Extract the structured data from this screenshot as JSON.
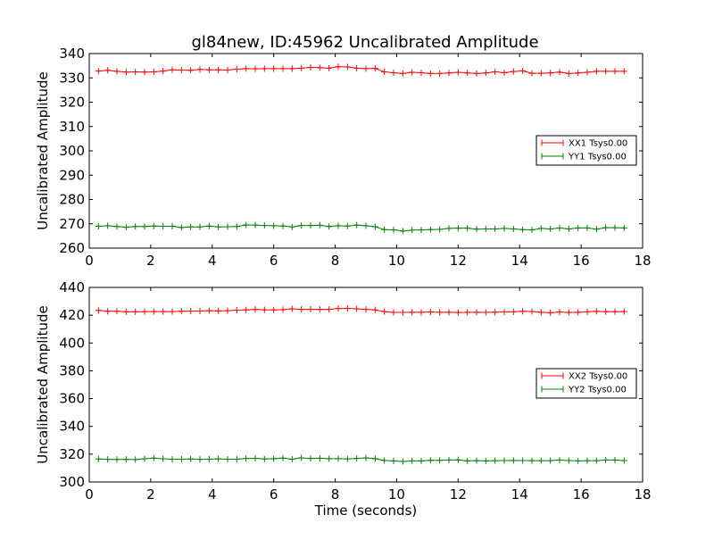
{
  "title": "gl84new, ID:45962 Uncalibrated Amplitude",
  "chart_data": [
    {
      "type": "line",
      "title": "gl84new, ID:45962 Uncalibrated Amplitude",
      "xlabel": "",
      "ylabel": "Uncalibrated Amplitude",
      "xlim": [
        0,
        18
      ],
      "ylim": [
        260,
        340
      ],
      "xticks": [
        "0",
        "2",
        "4",
        "6",
        "8",
        "10",
        "12",
        "14",
        "16",
        "18"
      ],
      "yticks": [
        "260",
        "270",
        "280",
        "290",
        "300",
        "310",
        "320",
        "330",
        "340"
      ],
      "grid": false,
      "legend_position": "right",
      "marker": "+",
      "x": [
        0.3,
        0.6,
        0.9,
        1.2,
        1.5,
        1.8,
        2.1,
        2.4,
        2.7,
        3.0,
        3.3,
        3.6,
        3.9,
        4.2,
        4.5,
        4.8,
        5.1,
        5.4,
        5.7,
        6.0,
        6.3,
        6.6,
        6.9,
        7.2,
        7.5,
        7.8,
        8.1,
        8.4,
        8.7,
        9.0,
        9.3,
        9.6,
        9.9,
        10.2,
        10.5,
        10.8,
        11.1,
        11.4,
        11.7,
        12.0,
        12.3,
        12.6,
        12.9,
        13.2,
        13.5,
        13.8,
        14.1,
        14.4,
        14.7,
        15.0,
        15.3,
        15.6,
        15.9,
        16.2,
        16.5,
        16.8,
        17.1,
        17.4
      ],
      "series": [
        {
          "name": "XX1 Tsys0.00",
          "color": "#ff0000",
          "values": [
            332.8,
            333.1,
            332.7,
            332.4,
            332.5,
            332.4,
            332.5,
            332.8,
            333.3,
            333.2,
            333.1,
            333.5,
            333.3,
            333.3,
            333.2,
            333.6,
            333.8,
            333.7,
            333.8,
            333.8,
            333.8,
            333.8,
            334.0,
            334.3,
            334.2,
            334.0,
            334.6,
            334.5,
            334.0,
            333.8,
            333.9,
            332.5,
            332.1,
            331.8,
            332.3,
            332.1,
            331.8,
            331.8,
            332.0,
            332.3,
            332.0,
            331.8,
            332.0,
            332.5,
            332.1,
            332.6,
            332.9,
            331.9,
            331.9,
            332.0,
            332.4,
            331.8,
            332.0,
            332.3,
            332.7,
            332.7,
            332.7,
            332.7
          ]
        },
        {
          "name": "YY1 Tsys0.00",
          "color": "#008000",
          "values": [
            269.0,
            269.2,
            268.9,
            268.6,
            268.9,
            268.9,
            269.1,
            269.0,
            269.0,
            268.5,
            268.7,
            268.7,
            269.1,
            268.7,
            268.8,
            268.9,
            269.5,
            269.5,
            269.3,
            269.2,
            269.1,
            268.7,
            269.3,
            269.3,
            269.4,
            268.9,
            269.2,
            269.1,
            269.5,
            269.2,
            268.8,
            267.6,
            267.5,
            267.0,
            267.4,
            267.5,
            267.6,
            267.7,
            268.1,
            268.2,
            268.2,
            267.8,
            267.9,
            267.9,
            268.1,
            267.9,
            267.6,
            267.5,
            268.1,
            267.9,
            268.3,
            267.9,
            268.3,
            268.3,
            267.8,
            268.4,
            268.4,
            268.3
          ]
        }
      ]
    },
    {
      "type": "line",
      "title": "",
      "xlabel": "Time (seconds)",
      "ylabel": "Uncalibrated Amplitude",
      "xlim": [
        0,
        18
      ],
      "ylim": [
        300,
        440
      ],
      "xticks": [
        "0",
        "2",
        "4",
        "6",
        "8",
        "10",
        "12",
        "14",
        "16",
        "18"
      ],
      "yticks": [
        "300",
        "320",
        "340",
        "360",
        "380",
        "400",
        "420",
        "440"
      ],
      "grid": false,
      "legend_position": "right",
      "marker": "+",
      "x": [
        0.3,
        0.6,
        0.9,
        1.2,
        1.5,
        1.8,
        2.1,
        2.4,
        2.7,
        3.0,
        3.3,
        3.6,
        3.9,
        4.2,
        4.5,
        4.8,
        5.1,
        5.4,
        5.7,
        6.0,
        6.3,
        6.6,
        6.9,
        7.2,
        7.5,
        7.8,
        8.1,
        8.4,
        8.7,
        9.0,
        9.3,
        9.6,
        9.9,
        10.2,
        10.5,
        10.8,
        11.1,
        11.4,
        11.7,
        12.0,
        12.3,
        12.6,
        12.9,
        13.2,
        13.5,
        13.8,
        14.1,
        14.4,
        14.7,
        15.0,
        15.3,
        15.6,
        15.9,
        16.2,
        16.5,
        16.8,
        17.1,
        17.4
      ],
      "series": [
        {
          "name": "XX2 Tsys0.00",
          "color": "#ff0000",
          "values": [
            423.5,
            422.8,
            422.9,
            422.4,
            422.4,
            422.6,
            422.6,
            422.6,
            422.6,
            422.9,
            423.0,
            423.0,
            423.2,
            423.1,
            423.2,
            423.6,
            423.8,
            424.2,
            423.9,
            423.8,
            424.0,
            424.6,
            424.2,
            424.3,
            424.2,
            424.2,
            424.8,
            424.9,
            424.6,
            424.2,
            423.8,
            422.6,
            422.0,
            422.0,
            422.1,
            422.1,
            422.3,
            422.1,
            422.1,
            421.9,
            422.1,
            422.1,
            422.0,
            422.2,
            422.3,
            422.4,
            422.8,
            422.7,
            422.1,
            421.8,
            422.3,
            421.9,
            422.1,
            422.4,
            422.8,
            422.5,
            422.5,
            422.6
          ]
        },
        {
          "name": "YY2 Tsys0.00",
          "color": "#008000",
          "values": [
            316.5,
            316.3,
            316.2,
            316.3,
            316.1,
            316.7,
            317.2,
            316.7,
            316.4,
            316.4,
            316.5,
            316.3,
            316.4,
            316.6,
            316.4,
            316.4,
            316.9,
            317.0,
            316.5,
            316.8,
            317.2,
            316.4,
            317.3,
            316.9,
            317.1,
            316.8,
            316.8,
            316.6,
            316.9,
            317.3,
            316.8,
            315.5,
            315.2,
            314.8,
            315.2,
            315.2,
            315.6,
            315.6,
            315.8,
            315.9,
            315.2,
            315.3,
            315.2,
            315.3,
            315.4,
            315.5,
            315.4,
            315.3,
            315.3,
            315.3,
            315.8,
            315.4,
            315.2,
            315.3,
            315.3,
            315.8,
            315.8,
            315.4
          ]
        }
      ]
    }
  ]
}
